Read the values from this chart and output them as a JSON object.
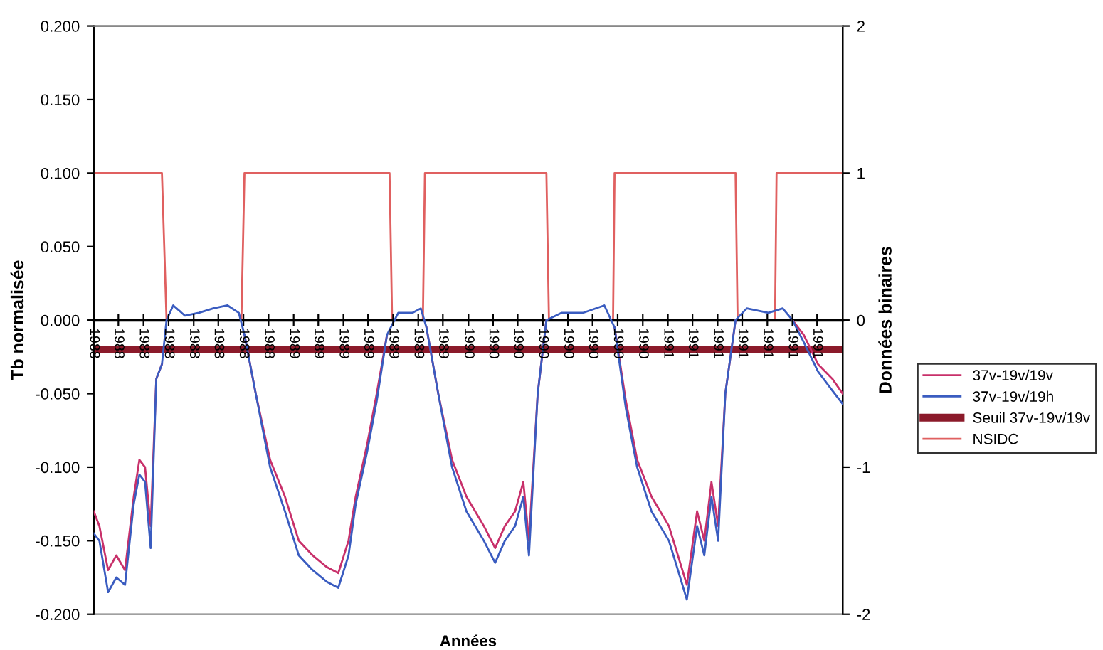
{
  "chart_data": {
    "type": "line",
    "xlabel": "Années",
    "ylabel": "Tb normalisée",
    "y2label": "Données binaires",
    "xlim": [
      "1988-01-01",
      "1992-01-01"
    ],
    "ylim": [
      -0.2,
      0.2
    ],
    "y2lim": [
      -2,
      2
    ],
    "xticks": [
      {
        "value": "1988-01-01",
        "label": "1988"
      },
      {
        "value": "1988-02-18",
        "label": "1988"
      },
      {
        "value": "1988-04-07",
        "label": "1988"
      },
      {
        "value": "1988-05-26",
        "label": "1988"
      },
      {
        "value": "1988-07-14",
        "label": "1988"
      },
      {
        "value": "1988-08-31",
        "label": "1988"
      },
      {
        "value": "1988-10-19",
        "label": "1988"
      },
      {
        "value": "1988-12-07",
        "label": "1988"
      },
      {
        "value": "1989-01-25",
        "label": "1989"
      },
      {
        "value": "1989-03-14",
        "label": "1989"
      },
      {
        "value": "1989-05-02",
        "label": "1989"
      },
      {
        "value": "1989-06-19",
        "label": "1989"
      },
      {
        "value": "1989-08-07",
        "label": "1989"
      },
      {
        "value": "1989-09-25",
        "label": "1989"
      },
      {
        "value": "1989-11-12",
        "label": "1989"
      },
      {
        "value": "1990-01-01",
        "label": "1990"
      },
      {
        "value": "1990-02-18",
        "label": "1990"
      },
      {
        "value": "1990-04-07",
        "label": "1990"
      },
      {
        "value": "1990-05-26",
        "label": "1990"
      },
      {
        "value": "1990-07-14",
        "label": "1990"
      },
      {
        "value": "1990-08-31",
        "label": "1990"
      },
      {
        "value": "1990-10-19",
        "label": "1990"
      },
      {
        "value": "1990-12-07",
        "label": "1990"
      },
      {
        "value": "1991-01-25",
        "label": "1991"
      },
      {
        "value": "1991-03-14",
        "label": "1991"
      },
      {
        "value": "1991-05-02",
        "label": "1991"
      },
      {
        "value": "1991-06-19",
        "label": "1991"
      },
      {
        "value": "1991-08-07",
        "label": "1991"
      },
      {
        "value": "1991-09-25",
        "label": "1991"
      },
      {
        "value": "1991-11-12",
        "label": "1991"
      }
    ],
    "yticks": [
      {
        "value": 0.2,
        "label": "0.200"
      },
      {
        "value": 0.15,
        "label": "0.150"
      },
      {
        "value": 0.1,
        "label": "0.100"
      },
      {
        "value": 0.05,
        "label": "0.050"
      },
      {
        "value": 0,
        "label": "0.000"
      },
      {
        "value": -0.05,
        "label": "-0.050"
      },
      {
        "value": -0.1,
        "label": "-0.100"
      },
      {
        "value": -0.15,
        "label": "-0.150"
      },
      {
        "value": -0.2,
        "label": "-0.200"
      }
    ],
    "y2ticks": [
      2,
      1,
      0,
      -1,
      -2
    ],
    "grid": false,
    "legend": "right",
    "marker": "none",
    "line_style": "solid",
    "series": [
      {
        "name": "37v-19v/19v",
        "color": "#c8306a",
        "x": [
          "1988-01-01",
          "1988-01-12",
          "1988-01-29",
          "1988-02-14",
          "1988-03-02",
          "1988-03-19",
          "1988-03-30",
          "1988-04-10",
          "1988-04-21",
          "1988-05-02",
          "1988-05-13",
          "1988-05-22",
          "1988-06-04",
          "1988-06-27",
          "1988-07-24",
          "1988-08-21",
          "1988-09-18",
          "1988-10-10",
          "1988-10-21",
          "1988-11-12",
          "1988-12-10",
          "1989-01-08",
          "1989-02-04",
          "1989-03-03",
          "1989-03-31",
          "1989-04-22",
          "1989-05-12",
          "1989-05-26",
          "1989-06-17",
          "1989-07-06",
          "1989-07-26",
          "1989-08-17",
          "1989-09-14",
          "1989-09-30",
          "1989-10-11",
          "1989-11-03",
          "1989-11-30",
          "1989-12-28",
          "1990-01-31",
          "1990-02-22",
          "1990-03-13",
          "1990-04-02",
          "1990-04-18",
          "1990-04-29",
          "1990-05-16",
          "1990-06-02",
          "1990-07-02",
          "1990-08-13",
          "1990-09-23",
          "1990-10-13",
          "1990-11-04",
          "1990-11-26",
          "1990-12-24",
          "1991-01-27",
          "1991-02-18",
          "1991-03-03",
          "1991-03-23",
          "1991-04-06",
          "1991-04-20",
          "1991-05-03",
          "1991-05-17",
          "1991-06-06",
          "1991-06-28",
          "1991-08-09",
          "1991-09-06",
          "1991-09-25",
          "1991-10-17",
          "1991-11-14",
          "1991-12-12",
          "1992-01-01"
        ],
        "values": [
          -0.13,
          -0.14,
          -0.17,
          -0.16,
          -0.17,
          -0.12,
          -0.095,
          -0.1,
          -0.14,
          -0.04,
          -0.03,
          null,
          null,
          null,
          null,
          null,
          null,
          null,
          -0.01,
          -0.05,
          -0.095,
          -0.12,
          -0.15,
          -0.16,
          -0.168,
          -0.172,
          -0.15,
          -0.12,
          -0.085,
          -0.05,
          -0.01,
          null,
          null,
          null,
          -0.005,
          -0.05,
          -0.095,
          -0.12,
          -0.14,
          -0.155,
          -0.14,
          -0.13,
          -0.11,
          -0.15,
          -0.05,
          0.0,
          null,
          null,
          null,
          -0.005,
          -0.055,
          -0.095,
          -0.12,
          -0.14,
          -0.165,
          -0.18,
          -0.13,
          -0.15,
          -0.11,
          -0.14,
          -0.05,
          0.0,
          null,
          null,
          null,
          0.0,
          -0.01,
          -0.03,
          -0.04,
          -0.05
        ]
      },
      {
        "name": "37v-19v/19h",
        "color": "#3a5cc0",
        "x": [
          "1988-01-01",
          "1988-01-12",
          "1988-01-29",
          "1988-02-14",
          "1988-03-02",
          "1988-03-19",
          "1988-03-30",
          "1988-04-10",
          "1988-04-21",
          "1988-05-02",
          "1988-05-13",
          "1988-05-22",
          "1988-06-04",
          "1988-06-27",
          "1988-07-24",
          "1988-08-21",
          "1988-09-18",
          "1988-10-10",
          "1988-10-21",
          "1988-11-12",
          "1988-12-10",
          "1989-01-08",
          "1989-02-04",
          "1989-03-03",
          "1989-03-31",
          "1989-04-22",
          "1989-05-12",
          "1989-05-26",
          "1989-06-17",
          "1989-07-06",
          "1989-07-26",
          "1989-08-17",
          "1989-09-14",
          "1989-09-30",
          "1989-10-11",
          "1989-11-03",
          "1989-11-30",
          "1989-12-28",
          "1990-01-31",
          "1990-02-22",
          "1990-03-13",
          "1990-04-02",
          "1990-04-18",
          "1990-04-29",
          "1990-05-16",
          "1990-06-02",
          "1990-07-02",
          "1990-08-13",
          "1990-09-23",
          "1990-10-13",
          "1990-11-04",
          "1990-11-26",
          "1990-12-24",
          "1991-01-27",
          "1991-02-18",
          "1991-03-03",
          "1991-03-23",
          "1991-04-06",
          "1991-04-20",
          "1991-05-03",
          "1991-05-17",
          "1991-06-06",
          "1991-06-28",
          "1991-08-09",
          "1991-09-06",
          "1991-09-25",
          "1991-10-17",
          "1991-11-14",
          "1991-12-12",
          "1992-01-01"
        ],
        "values": [
          -0.145,
          -0.15,
          -0.185,
          -0.175,
          -0.18,
          -0.125,
          -0.105,
          -0.11,
          -0.155,
          -0.04,
          -0.03,
          0.0,
          0.01,
          0.003,
          0.005,
          0.008,
          0.01,
          0.005,
          -0.01,
          -0.05,
          -0.1,
          -0.13,
          -0.16,
          -0.17,
          -0.178,
          -0.182,
          -0.16,
          -0.125,
          -0.09,
          -0.055,
          -0.01,
          0.005,
          0.005,
          0.008,
          -0.005,
          -0.05,
          -0.1,
          -0.13,
          -0.15,
          -0.165,
          -0.15,
          -0.14,
          -0.12,
          -0.16,
          -0.05,
          0.0,
          0.005,
          0.005,
          0.01,
          -0.005,
          -0.06,
          -0.1,
          -0.13,
          -0.15,
          -0.175,
          -0.19,
          -0.14,
          -0.16,
          -0.12,
          -0.15,
          -0.05,
          0.0,
          0.008,
          0.005,
          0.008,
          0.0,
          -0.015,
          -0.035,
          -0.048,
          -0.057
        ]
      },
      {
        "name": "Seuil 37v-19v/19v",
        "color": "#8b1a2a",
        "x": [
          "1988-01-01",
          "1992-01-01"
        ],
        "values": [
          -0.02,
          -0.02
        ]
      },
      {
        "name": "NSIDC",
        "color": "#e06060",
        "axis": "y2",
        "x": [
          "1988-01-01",
          "1988-05-13",
          "1988-05-22",
          "1988-10-15",
          "1988-10-21",
          "1989-07-31",
          "1989-08-05",
          "1989-10-04",
          "1989-10-08",
          "1990-06-02",
          "1990-06-07",
          "1990-10-10",
          "1990-10-13",
          "1991-06-06",
          "1991-06-10",
          "1991-08-22",
          "1991-08-25",
          "1992-01-01"
        ],
        "values": [
          1,
          1,
          0,
          0,
          1,
          1,
          0,
          0,
          1,
          1,
          0,
          0,
          1,
          1,
          0,
          0,
          1,
          1
        ]
      }
    ]
  }
}
